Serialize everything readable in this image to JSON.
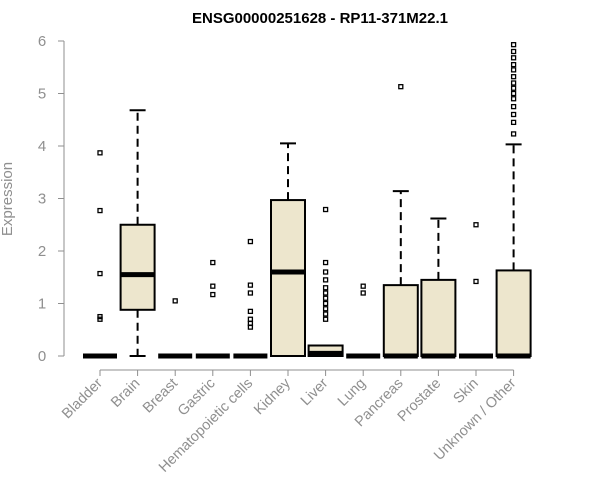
{
  "chart_data": {
    "type": "boxplot",
    "title": "ENSG00000251628 - RP11-371M22.1",
    "ylabel": "Expression",
    "xlabel": "",
    "ylim": [
      0,
      6
    ],
    "yticks": [
      0,
      1,
      2,
      3,
      4,
      5,
      6
    ],
    "grid": false,
    "box_color": "#ede6cd",
    "categories": [
      "Bladder",
      "Brain",
      "Breast",
      "Gastric",
      "Hematopoietic cells",
      "Kidney",
      "Liver",
      "Lung",
      "Pancreas",
      "Prostate",
      "Skin",
      "Unknown / Other"
    ],
    "boxes": [
      {
        "q1": 0,
        "median": 0,
        "q3": 0,
        "whisker_low": 0,
        "whisker_high": 0,
        "outliers": [
          0.7,
          0.75,
          1.57,
          2.77,
          3.87
        ]
      },
      {
        "q1": 0.88,
        "median": 1.55,
        "q3": 2.5,
        "whisker_low": 0,
        "whisker_high": 4.68,
        "outliers": []
      },
      {
        "q1": 0,
        "median": 0,
        "q3": 0,
        "whisker_low": 0,
        "whisker_high": 0,
        "outliers": [
          1.05
        ]
      },
      {
        "q1": 0,
        "median": 0,
        "q3": 0,
        "whisker_low": 0,
        "whisker_high": 0,
        "outliers": [
          1.17,
          1.33,
          1.78
        ]
      },
      {
        "q1": 0,
        "median": 0,
        "q3": 0,
        "whisker_low": 0,
        "whisker_high": 0,
        "outliers": [
          0.55,
          0.62,
          0.7,
          0.85,
          1.2,
          1.35,
          2.18
        ]
      },
      {
        "q1": 0,
        "median": 1.6,
        "q3": 2.97,
        "whisker_low": 0,
        "whisker_high": 4.05,
        "outliers": []
      },
      {
        "q1": 0,
        "median": 0.05,
        "q3": 0.2,
        "whisker_low": 0,
        "whisker_high": 0.2,
        "outliers": [
          0.7,
          0.8,
          0.9,
          1.0,
          1.1,
          1.2,
          1.3,
          1.45,
          1.6,
          1.78,
          2.79
        ]
      },
      {
        "q1": 0,
        "median": 0,
        "q3": 0,
        "whisker_low": 0,
        "whisker_high": 0,
        "outliers": [
          1.2,
          1.33
        ]
      },
      {
        "q1": 0,
        "median": 0,
        "q3": 1.35,
        "whisker_low": 0,
        "whisker_high": 3.14,
        "outliers": [
          5.13
        ]
      },
      {
        "q1": 0,
        "median": 0,
        "q3": 1.45,
        "whisker_low": 0,
        "whisker_high": 2.62,
        "outliers": []
      },
      {
        "q1": 0,
        "median": 0,
        "q3": 0,
        "whisker_low": 0,
        "whisker_high": 0,
        "outliers": [
          1.42,
          2.5
        ]
      },
      {
        "q1": 0,
        "median": 0,
        "q3": 1.63,
        "whisker_low": 0,
        "whisker_high": 4.03,
        "outliers": [
          4.23,
          4.45,
          4.6,
          4.75,
          4.9,
          5.0,
          5.1,
          5.2,
          5.32,
          5.45,
          5.55,
          5.68,
          5.8,
          5.93
        ]
      }
    ]
  }
}
